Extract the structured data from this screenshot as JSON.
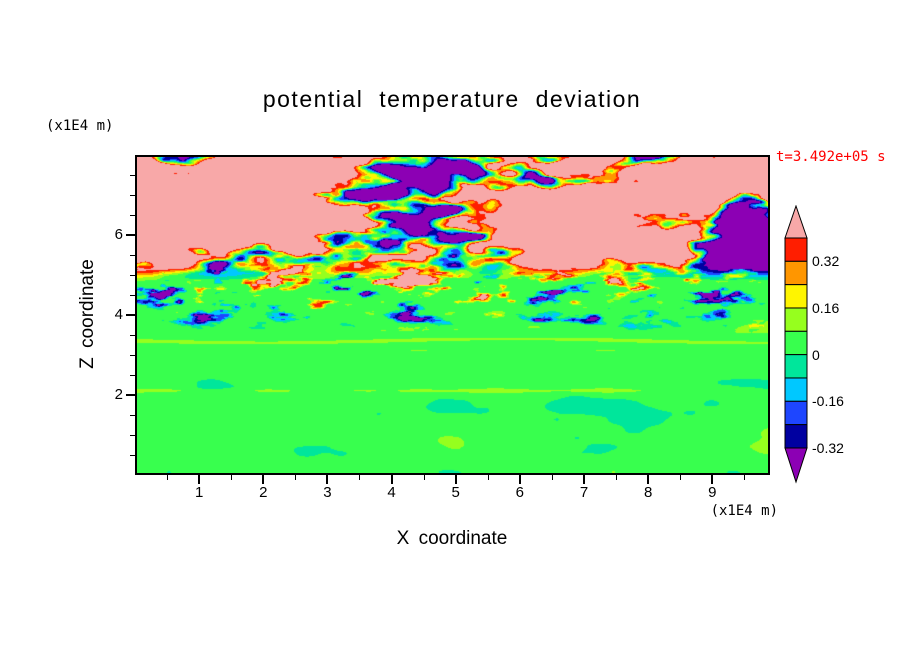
{
  "page": {
    "background": "#FFFFFF"
  },
  "chart_data": {
    "type": "heatmap",
    "title": "potential temperature deviation",
    "xlabel": "X coordinate",
    "ylabel": "Z coordinate",
    "x_unit_label": "(x1E4 m)",
    "y_unit_label": "(x1E4 m)",
    "annotation": "t=3.492e+05 s",
    "annotation_color": "#FF0000",
    "x_range": [
      0,
      9.9
    ],
    "y_range": [
      0,
      8
    ],
    "x_ticks": [
      1,
      2,
      3,
      4,
      5,
      6,
      7,
      8,
      9
    ],
    "y_ticks": [
      2,
      4,
      6
    ],
    "x_minor_step": 0.5,
    "y_minor_step": 0.5,
    "grid": false,
    "legend_position": "right-colorbar",
    "colorbar": {
      "tick_labels": [
        "0.32",
        "0.16",
        "0",
        "-0.16",
        "-0.32"
      ],
      "levels": [
        -0.32,
        -0.24,
        -0.16,
        -0.08,
        0,
        0.08,
        0.16,
        0.24,
        0.32,
        0.4
      ],
      "colors_low_to_high": [
        "#8C00B4",
        "#0000A0",
        "#1E46FF",
        "#00C8FF",
        "#00E69B",
        "#38FF4E",
        "#96FF1E",
        "#FFF500",
        "#FF9600",
        "#FF1E00",
        "#F8A8A8"
      ],
      "over_arrow": true,
      "under_arrow": true
    },
    "field_regions": [
      {
        "z_range": [
          0,
          2.2
        ],
        "pattern": "convective plumes: bright green background near +0.05 with large teal blobs near -0.05"
      },
      {
        "z_range": [
          2.2,
          3.6
        ],
        "pattern": "quiet green layer near 0 with thin horizontal yellow-green stripes near z=2.1 and z=3.0-3.6"
      },
      {
        "z_range": [
          3.6,
          5.0
        ],
        "pattern": "turbulent layer: green with elongated cyan/blue/navy negative streaks and yellow/orange/red positive streaks"
      },
      {
        "z_range": [
          5.0,
          8.0
        ],
        "pattern": "wave layer: pink background above +0.4 with large purple blobs below -0.32 bounded by thin multicolor fringes"
      }
    ]
  }
}
